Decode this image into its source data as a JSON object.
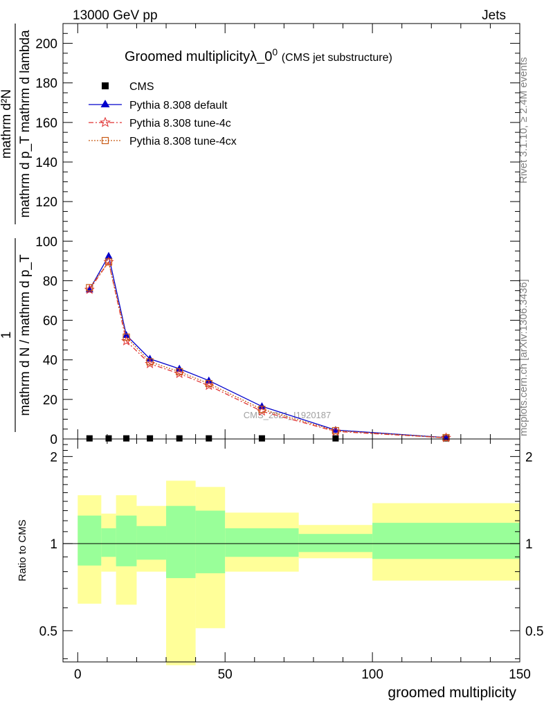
{
  "header": {
    "energy_label": "13000 GeV pp",
    "process_label": "Jets"
  },
  "side_labels": {
    "rivet": "Rivet 3.1.10, ≥ 2.4M events",
    "mcplots": "mcplots.cern.ch [arXiv:1306.3436]"
  },
  "watermark": "CMS_2021_I1920187",
  "chart_data": [
    {
      "type": "line",
      "title": "Groomed multiplicityλ_0",
      "title_superscript": "0",
      "subtitle": "(CMS jet substructure)",
      "ylabel_numerator_1": "1",
      "ylabel_denominator_1": "mathrm d N / mathrm d p_T",
      "ylabel_numerator_2": "mathrm d²N",
      "ylabel_denominator_2": "mathrm d p_T mathrm d lambda",
      "xlim": [
        -5,
        150
      ],
      "ylim": [
        0,
        210
      ],
      "x_ticks": [
        0,
        50,
        100,
        150
      ],
      "y_ticks": [
        0,
        20,
        40,
        60,
        80,
        100,
        120,
        140,
        160,
        180,
        200
      ],
      "legend_placement": "top-left",
      "series": [
        {
          "name": "CMS",
          "color": "#000000",
          "marker": "square",
          "x": [
            4,
            10.5,
            16.5,
            24.5,
            34.5,
            44.5,
            62.5,
            87.5,
            125
          ],
          "values": [
            0.3,
            0.3,
            0.3,
            0.3,
            0.3,
            0.3,
            0.3,
            0.3,
            0.3
          ]
        },
        {
          "name": "Pythia 8.308 default",
          "color": "#0000cc",
          "marker": "triangle",
          "dash": "",
          "x": [
            4,
            10.5,
            16.5,
            24.5,
            34.5,
            44.5,
            62.5,
            87.5,
            125
          ],
          "values": [
            75.5,
            92.5,
            52.5,
            40.5,
            35.5,
            29.5,
            16.5,
            4.5,
            0.7
          ]
        },
        {
          "name": "Pythia 8.308 tune-4c",
          "color": "#e03030",
          "marker": "star",
          "dash": "7,3,2,3",
          "x": [
            4,
            10.5,
            16.5,
            24.5,
            34.5,
            44.5,
            62.5,
            87.5,
            125
          ],
          "values": [
            75.5,
            89.5,
            49.5,
            38,
            33,
            27,
            14,
            3.8,
            0.6
          ]
        },
        {
          "name": "Pythia 8.308 tune-4cx",
          "color": "#c85a14",
          "marker": "open-square",
          "dash": "2,2",
          "x": [
            4,
            10.5,
            16.5,
            24.5,
            34.5,
            44.5,
            62.5,
            87.5,
            125
          ],
          "values": [
            76.5,
            89.5,
            51.5,
            39,
            34,
            28,
            15,
            4.2,
            0.7
          ]
        }
      ]
    },
    {
      "type": "area",
      "ylabel": "Ratio to CMS",
      "xlabel": "groomed multiplicity",
      "xlim": [
        -5,
        150
      ],
      "ylim": [
        0.39,
        2.3
      ],
      "log_scale_y": true,
      "x_ticks": [
        0,
        50,
        100,
        150
      ],
      "y_tick_labels": [
        {
          "value": 0.5,
          "label": "0.5"
        },
        {
          "value": 1,
          "label": "1"
        },
        {
          "value": 2,
          "label": "2"
        }
      ],
      "reference_line": 1,
      "bands": [
        {
          "x0": 0,
          "x1": 8,
          "green": [
            0.84,
            1.25
          ],
          "yellow": [
            0.62,
            1.47
          ]
        },
        {
          "x0": 8,
          "x1": 13,
          "green": [
            0.9,
            1.13
          ],
          "yellow": [
            0.8,
            1.27
          ]
        },
        {
          "x0": 13,
          "x1": 20,
          "green": [
            0.835,
            1.25
          ],
          "yellow": [
            0.615,
            1.47
          ]
        },
        {
          "x0": 20,
          "x1": 30,
          "green": [
            0.88,
            1.15
          ],
          "yellow": [
            0.8,
            1.35
          ]
        },
        {
          "x0": 30,
          "x1": 40,
          "green": [
            0.76,
            1.35
          ],
          "yellow": [
            0.38,
            1.65
          ]
        },
        {
          "x0": 40,
          "x1": 50,
          "green": [
            0.79,
            1.3
          ],
          "yellow": [
            0.51,
            1.57
          ]
        },
        {
          "x0": 50,
          "x1": 75,
          "green": [
            0.9,
            1.13
          ],
          "yellow": [
            0.8,
            1.28
          ]
        },
        {
          "x0": 75,
          "x1": 100,
          "green": [
            0.935,
            1.08
          ],
          "yellow": [
            0.89,
            1.16
          ]
        },
        {
          "x0": 100,
          "x1": 150,
          "green": [
            0.885,
            1.18
          ],
          "yellow": [
            0.745,
            1.38
          ]
        }
      ],
      "colors": {
        "green_band": "#99ff99",
        "yellow_band": "#ffff99"
      }
    }
  ]
}
